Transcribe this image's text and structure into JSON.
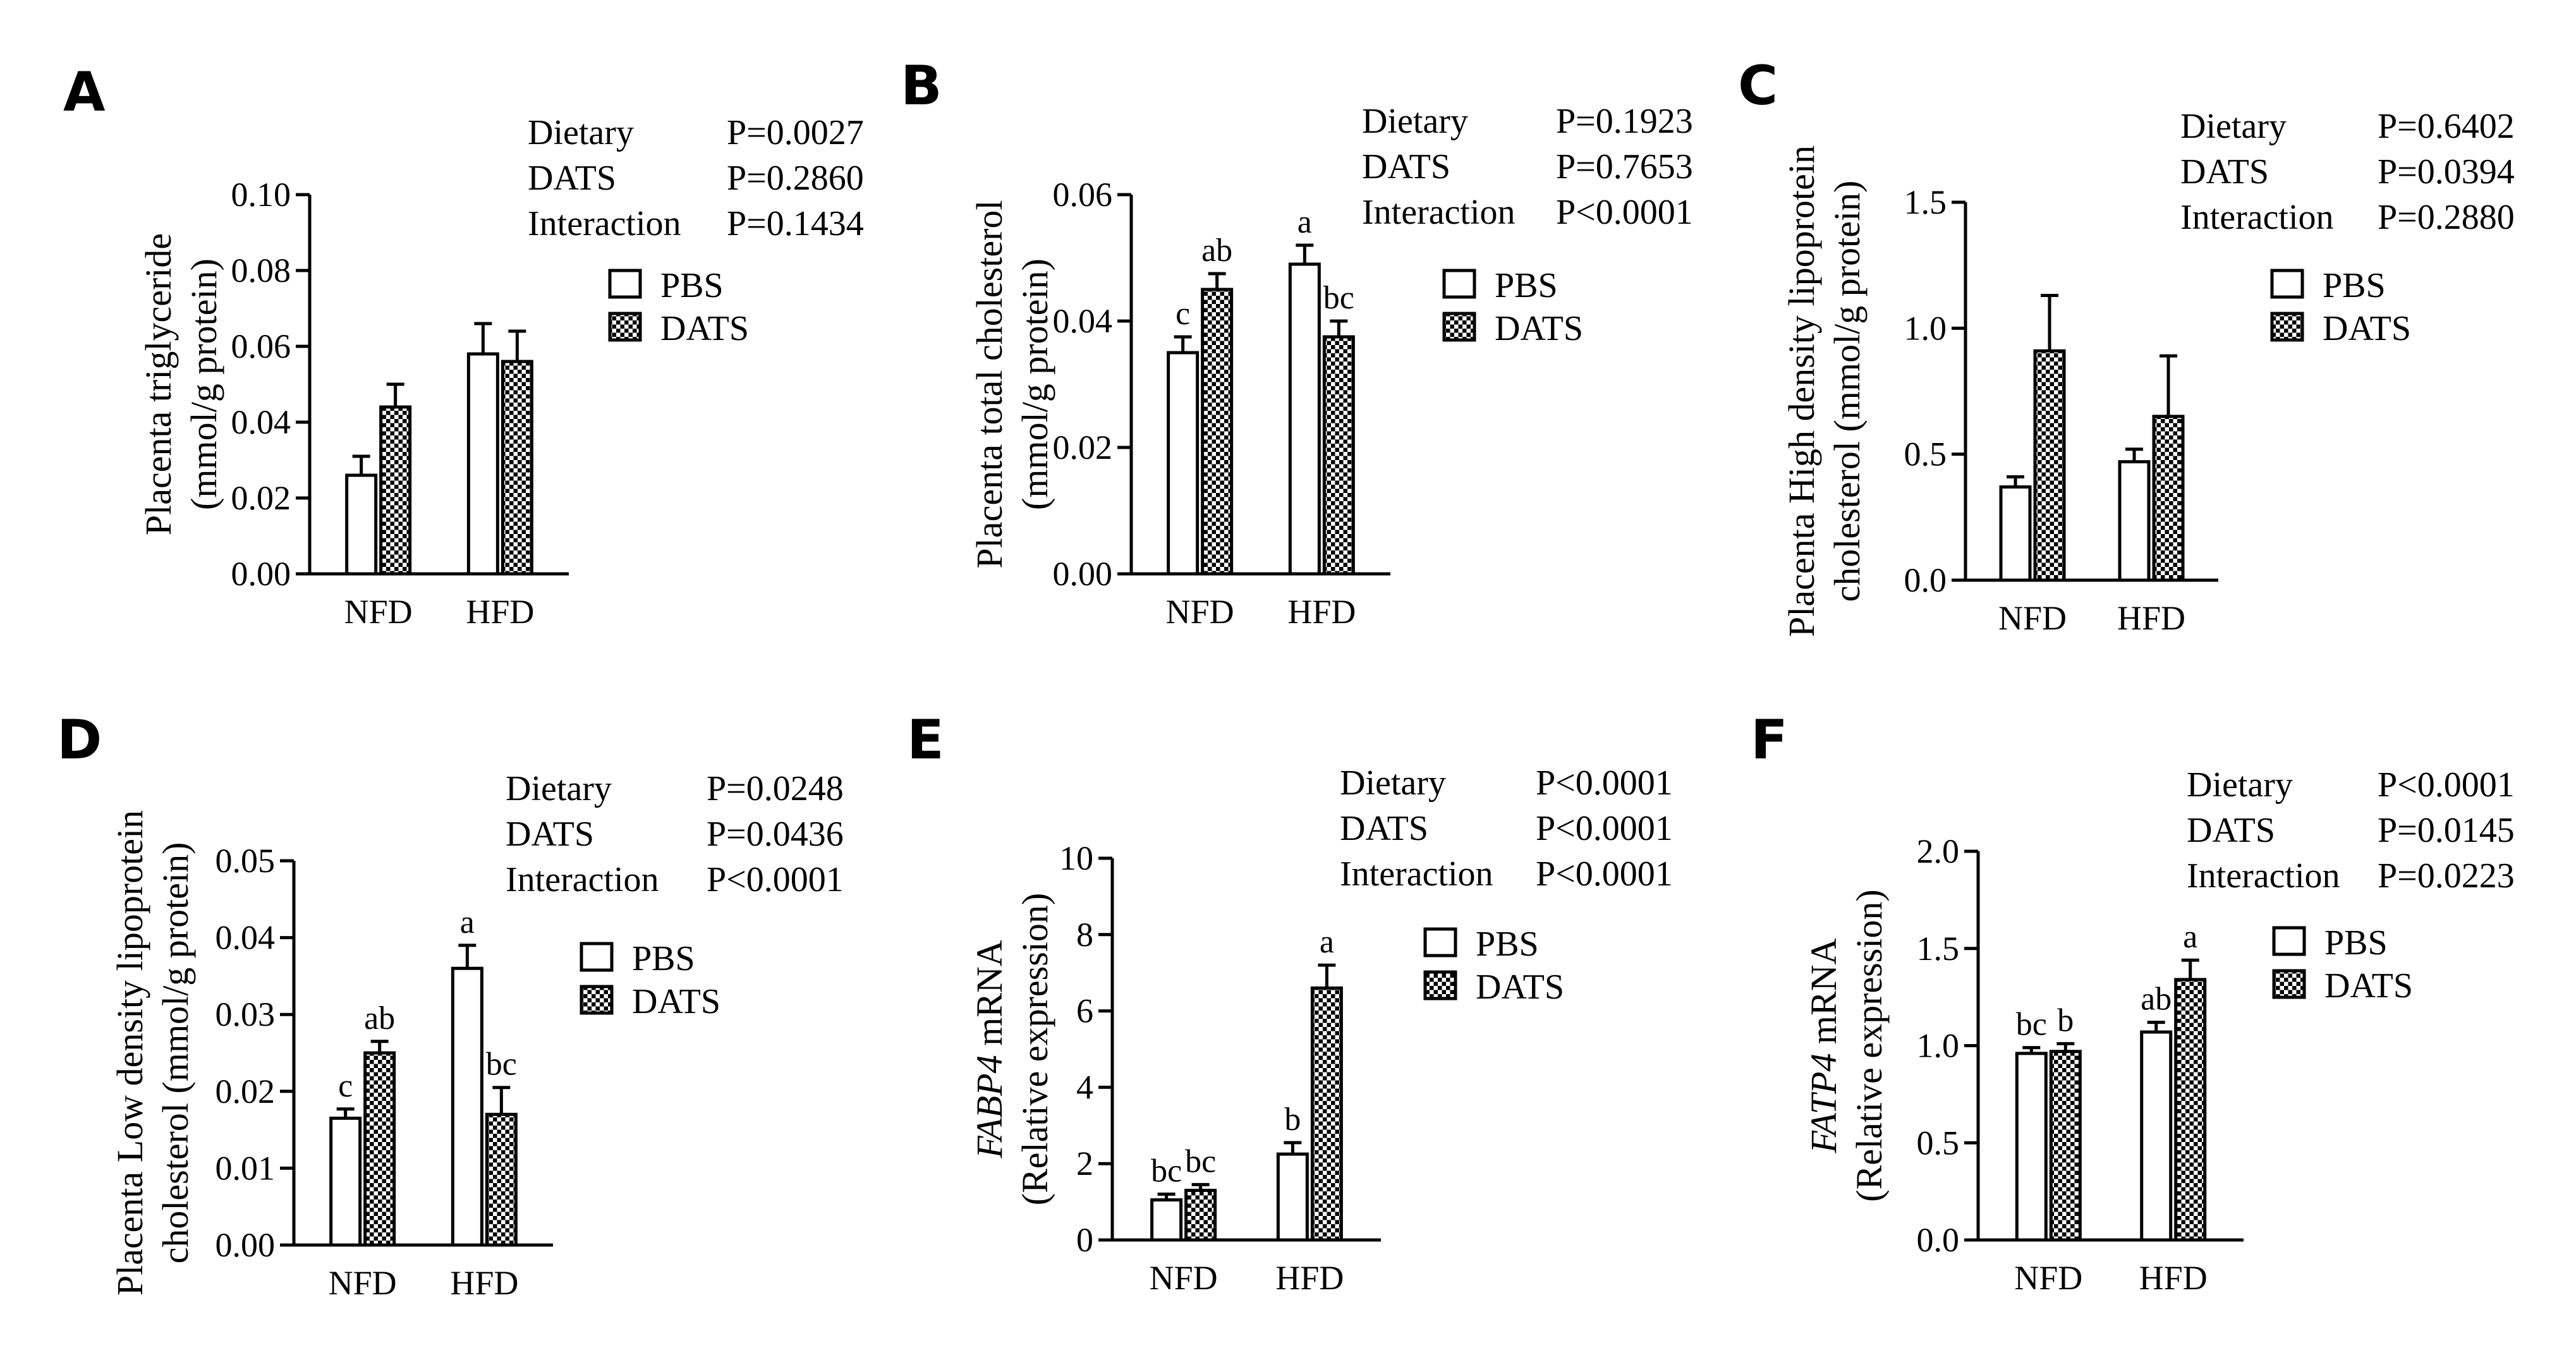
{
  "legend": {
    "pbs_label": "PBS",
    "dats_label": "DATS"
  },
  "chart_data": [
    {
      "type": "bar",
      "panel": "A",
      "ylabel_lines": [
        "Placenta triglyceride",
        "(mmol/g protein)"
      ],
      "categories": [
        "NFD",
        "HFD"
      ],
      "series": [
        {
          "name": "PBS",
          "values": [
            0.026,
            0.058
          ],
          "errors": [
            0.005,
            0.008
          ],
          "letters": [
            "",
            ""
          ]
        },
        {
          "name": "DATS",
          "values": [
            0.044,
            0.056
          ],
          "errors": [
            0.006,
            0.008
          ],
          "letters": [
            "",
            ""
          ]
        }
      ],
      "ylim": [
        0,
        0.1
      ],
      "yticks": [
        "0.00",
        "0.02",
        "0.04",
        "0.06",
        "0.08",
        "0.10"
      ],
      "stats": [
        {
          "label": "Dietary",
          "value": "P=0.0027"
        },
        {
          "label": "DATS",
          "value": "P=0.2860"
        },
        {
          "label": "Interaction",
          "value": "P=0.1434"
        }
      ]
    },
    {
      "type": "bar",
      "panel": "B",
      "ylabel_lines": [
        "Placenta total cholesterol",
        "(mmol/g protein)"
      ],
      "categories": [
        "NFD",
        "HFD"
      ],
      "series": [
        {
          "name": "PBS",
          "values": [
            0.035,
            0.049
          ],
          "errors": [
            0.0025,
            0.003
          ],
          "letters": [
            "c",
            "a"
          ]
        },
        {
          "name": "DATS",
          "values": [
            0.045,
            0.0375
          ],
          "errors": [
            0.0025,
            0.0025
          ],
          "letters": [
            "ab",
            "bc"
          ]
        }
      ],
      "ylim": [
        0,
        0.06
      ],
      "yticks": [
        "0.00",
        "0.02",
        "0.04",
        "0.06"
      ],
      "stats": [
        {
          "label": "Dietary",
          "value": "P=0.1923"
        },
        {
          "label": "DATS",
          "value": "P=0.7653"
        },
        {
          "label": "Interaction",
          "value": "P<0.0001"
        }
      ]
    },
    {
      "type": "bar",
      "panel": "C",
      "ylabel_lines": [
        "Placenta High density lipoprotein",
        "cholesterol (mmol/g protein)"
      ],
      "categories": [
        "NFD",
        "HFD"
      ],
      "series": [
        {
          "name": "PBS",
          "values": [
            0.37,
            0.47
          ],
          "errors": [
            0.04,
            0.05
          ],
          "letters": [
            "",
            ""
          ]
        },
        {
          "name": "DATS",
          "values": [
            0.91,
            0.65
          ],
          "errors": [
            0.22,
            0.24
          ],
          "letters": [
            "",
            ""
          ]
        }
      ],
      "ylim": [
        0,
        1.5
      ],
      "yticks": [
        "0.0",
        "0.5",
        "1.0",
        "1.5"
      ],
      "stats": [
        {
          "label": "Dietary",
          "value": "P=0.6402"
        },
        {
          "label": "DATS",
          "value": "P=0.0394"
        },
        {
          "label": "Interaction",
          "value": "P=0.2880"
        }
      ]
    },
    {
      "type": "bar",
      "panel": "D",
      "ylabel_lines": [
        "Placenta Low density lipoprotein",
        "cholesterol (mmol/g protein)"
      ],
      "categories": [
        "NFD",
        "HFD"
      ],
      "series": [
        {
          "name": "PBS",
          "values": [
            0.0165,
            0.036
          ],
          "errors": [
            0.0012,
            0.003
          ],
          "letters": [
            "c",
            "a"
          ]
        },
        {
          "name": "DATS",
          "values": [
            0.025,
            0.017
          ],
          "errors": [
            0.0015,
            0.0035
          ],
          "letters": [
            "ab",
            "bc"
          ]
        }
      ],
      "ylim": [
        0,
        0.05
      ],
      "yticks": [
        "0.00",
        "0.01",
        "0.02",
        "0.03",
        "0.04",
        "0.05"
      ],
      "stats": [
        {
          "label": "Dietary",
          "value": "P=0.0248"
        },
        {
          "label": "DATS",
          "value": "P=0.0436"
        },
        {
          "label": "Interaction",
          "value": "P<0.0001"
        }
      ]
    },
    {
      "type": "bar",
      "panel": "E",
      "ylabel_gene": "FABP4",
      "ylabel_rest": " mRNA",
      "ylabel_lines": [
        "",
        "(Relative expression)"
      ],
      "categories": [
        "NFD",
        "HFD"
      ],
      "series": [
        {
          "name": "PBS",
          "values": [
            1.05,
            2.25
          ],
          "errors": [
            0.15,
            0.3
          ],
          "letters": [
            "bc",
            "b"
          ]
        },
        {
          "name": "DATS",
          "values": [
            1.3,
            6.6
          ],
          "errors": [
            0.15,
            0.6
          ],
          "letters": [
            "bc",
            "a"
          ]
        }
      ],
      "ylim": [
        0,
        10
      ],
      "yticks": [
        "0",
        "2",
        "4",
        "6",
        "8",
        "10"
      ],
      "stats": [
        {
          "label": "Dietary",
          "value": "P<0.0001"
        },
        {
          "label": "DATS",
          "value": "P<0.0001"
        },
        {
          "label": "Interaction",
          "value": "P<0.0001"
        }
      ]
    },
    {
      "type": "bar",
      "panel": "F",
      "ylabel_gene": "FATP4",
      "ylabel_rest": " mRNA",
      "ylabel_lines": [
        "",
        "(Relative expression)"
      ],
      "categories": [
        "NFD",
        "HFD"
      ],
      "series": [
        {
          "name": "PBS",
          "values": [
            0.96,
            1.07
          ],
          "errors": [
            0.03,
            0.05
          ],
          "letters": [
            "bc",
            "ab"
          ]
        },
        {
          "name": "DATS",
          "values": [
            0.97,
            1.34
          ],
          "errors": [
            0.04,
            0.1
          ],
          "letters": [
            "b",
            "a"
          ]
        }
      ],
      "ylim": [
        0,
        2.0
      ],
      "yticks": [
        "0.0",
        "0.5",
        "1.0",
        "1.5",
        "2.0"
      ],
      "stats": [
        {
          "label": "Dietary",
          "value": "P<0.0001"
        },
        {
          "label": "DATS",
          "value": "P=0.0145"
        },
        {
          "label": "Interaction",
          "value": "P=0.0223"
        }
      ]
    }
  ]
}
